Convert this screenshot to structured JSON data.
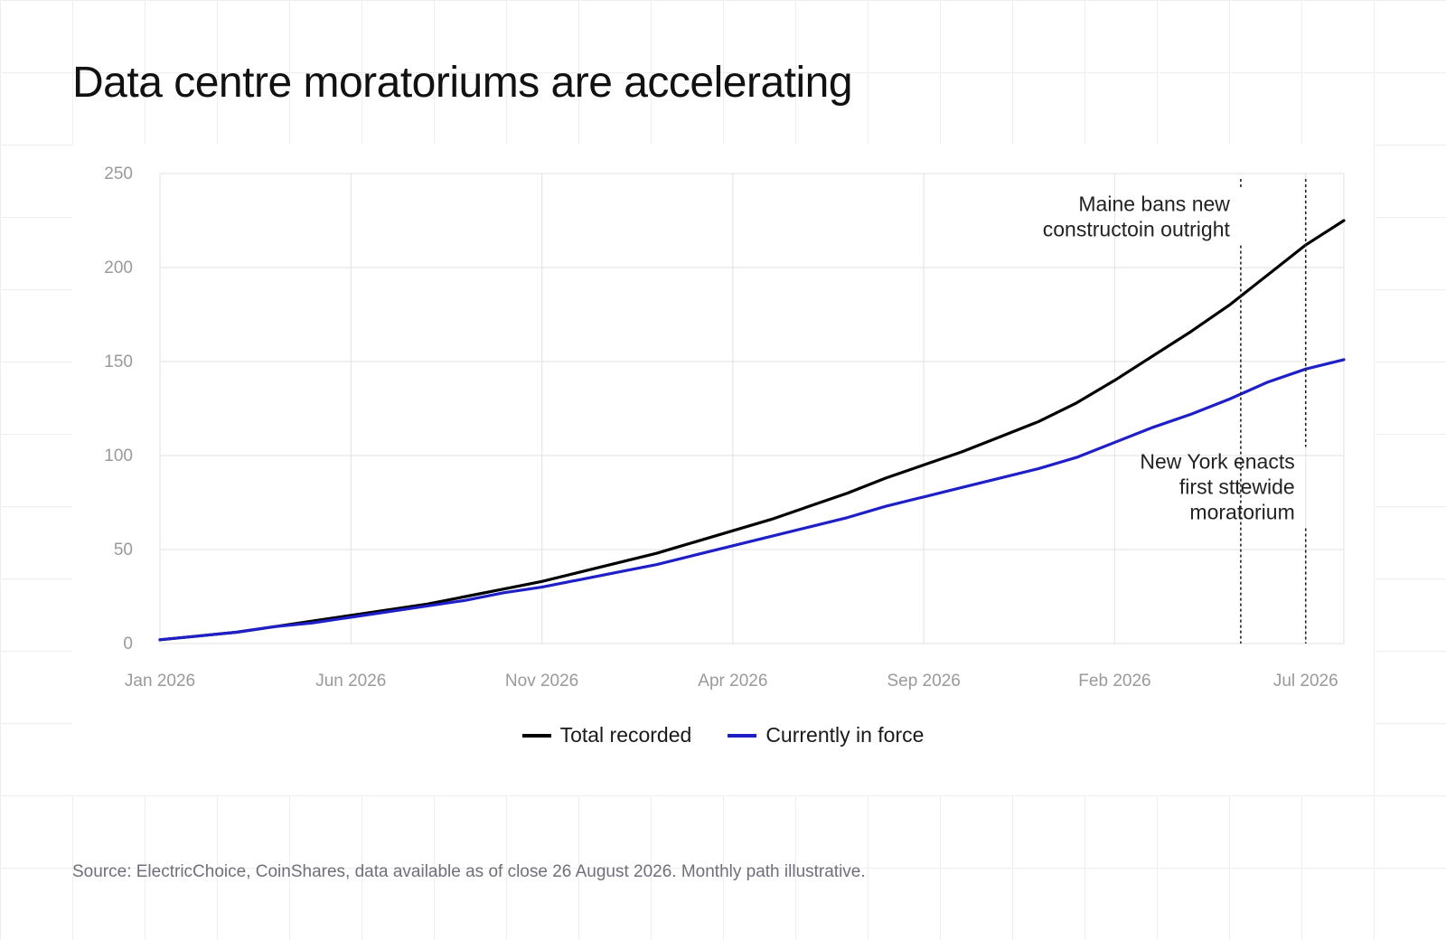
{
  "title": "Data centre moratoriums are accelerating",
  "source": "Source: ElectricChoice, CoinShares, data available as of close 26 August 2026. Monthly path illustrative.",
  "colors": {
    "total": "#000000",
    "in_force": "#1f1fc8",
    "grid": "#e6e6e6",
    "axis_label": "#9a9a9a",
    "background": "#ffffff"
  },
  "chart_data": {
    "type": "line",
    "x": [
      0,
      1,
      2,
      3,
      4,
      5,
      6,
      7,
      8,
      9,
      10,
      11,
      12,
      13,
      14,
      15,
      16,
      17,
      18,
      19,
      20,
      21,
      22,
      23,
      24,
      25,
      26,
      27,
      28,
      29,
      30,
      31
    ],
    "xticks": [
      {
        "x": 0,
        "label": "Jan 2026"
      },
      {
        "x": 5,
        "label": "Jun 2026"
      },
      {
        "x": 10,
        "label": "Nov 2026"
      },
      {
        "x": 15,
        "label": "Apr 2026"
      },
      {
        "x": 20,
        "label": "Sep 2026"
      },
      {
        "x": 25,
        "label": "Feb 2026"
      },
      {
        "x": 30,
        "label": "Jul 2026"
      }
    ],
    "xlim": [
      0,
      31
    ],
    "ylim": [
      0,
      250
    ],
    "yticks": [
      0,
      50,
      100,
      150,
      200,
      250
    ],
    "grid": true,
    "legend_position": "bottom-center",
    "series": [
      {
        "name": "Total recorded",
        "color": "#000000",
        "values": [
          2,
          4,
          6,
          9,
          12,
          15,
          18,
          21,
          25,
          29,
          33,
          38,
          43,
          48,
          54,
          60,
          66,
          73,
          80,
          88,
          95,
          102,
          110,
          118,
          128,
          140,
          153,
          166,
          180,
          196,
          212,
          225
        ]
      },
      {
        "name": "Currently in force",
        "color": "#1f1fc8",
        "values": [
          2,
          4,
          6,
          9,
          11,
          14,
          17,
          20,
          23,
          27,
          30,
          34,
          38,
          42,
          47,
          52,
          57,
          62,
          67,
          73,
          78,
          83,
          88,
          93,
          99,
          107,
          115,
          122,
          130,
          139,
          146,
          151
        ]
      }
    ],
    "annotations": [
      {
        "x": 28.3,
        "lines": [
          "Maine bans new",
          "constructoin outright"
        ],
        "text_y": 230
      },
      {
        "x": 30,
        "lines": [
          "New York enacts",
          "first sttewide",
          "moratorium"
        ],
        "text_y": 93
      }
    ]
  }
}
